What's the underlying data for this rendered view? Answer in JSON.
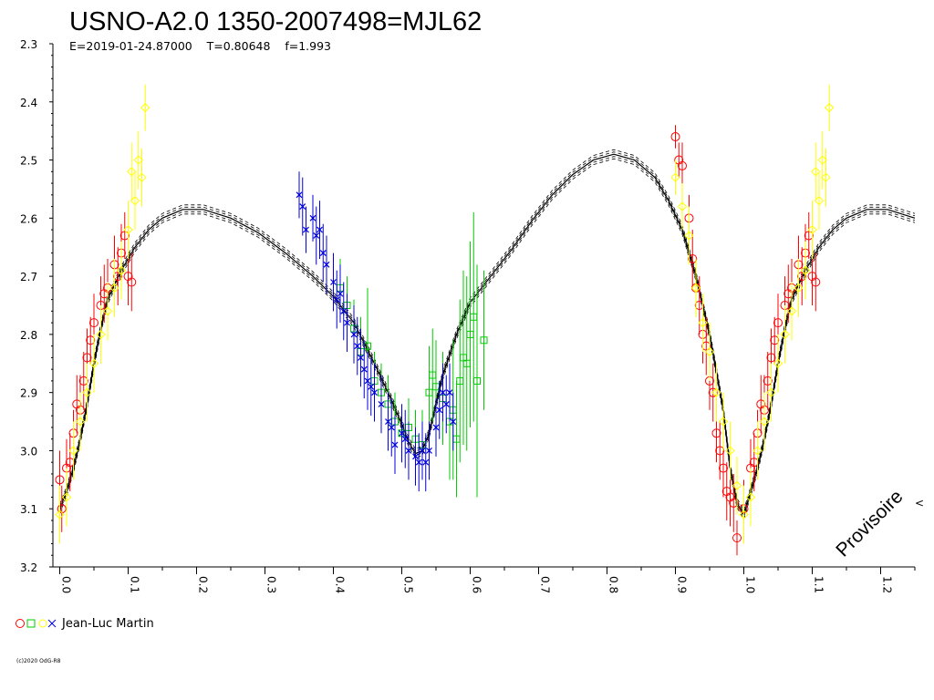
{
  "chart_data": {
    "type": "scatter",
    "title": "USNO-A2.0 1350-2007498=MJL62",
    "subtitle": "E=2019-01-24.87000    T=0.80648    f=1.993",
    "xlim": [
      -0.01,
      1.25
    ],
    "ylim": [
      2.3,
      3.2
    ],
    "y_inverted": true,
    "x_ticks": [
      "0.0",
      "0.1",
      "0.2",
      "0.3",
      "0.4",
      "0.5",
      "0.6",
      "0.7",
      "0.8",
      "0.9",
      "1.0",
      "1.1",
      "1.2"
    ],
    "y_ticks": [
      "2.3",
      "2.4",
      "2.5",
      "2.6",
      "2.7",
      "2.8",
      "2.9",
      "3.0",
      "3.1",
      "3.2"
    ],
    "legend": {
      "position": "bottom-left",
      "label": "Jean-Luc Martin"
    },
    "watermark": "Provisoire",
    "footer": "(c)2020 OdG-R8",
    "model_curve": {
      "color": "#000000",
      "points": [
        [
          0.0,
          3.1
        ],
        [
          0.01,
          3.07
        ],
        [
          0.02,
          3.03
        ],
        [
          0.03,
          2.98
        ],
        [
          0.04,
          2.92
        ],
        [
          0.05,
          2.85
        ],
        [
          0.06,
          2.79
        ],
        [
          0.07,
          2.74
        ],
        [
          0.09,
          2.69
        ],
        [
          0.11,
          2.65
        ],
        [
          0.13,
          2.62
        ],
        [
          0.15,
          2.6
        ],
        [
          0.18,
          2.585
        ],
        [
          0.21,
          2.585
        ],
        [
          0.25,
          2.6
        ],
        [
          0.29,
          2.625
        ],
        [
          0.33,
          2.66
        ],
        [
          0.37,
          2.7
        ],
        [
          0.4,
          2.735
        ],
        [
          0.43,
          2.78
        ],
        [
          0.46,
          2.85
        ],
        [
          0.48,
          2.9
        ],
        [
          0.5,
          2.955
        ],
        [
          0.51,
          2.985
        ],
        [
          0.52,
          3.005
        ],
        [
          0.53,
          3.0
        ],
        [
          0.54,
          2.97
        ],
        [
          0.55,
          2.92
        ],
        [
          0.56,
          2.87
        ],
        [
          0.58,
          2.8
        ],
        [
          0.6,
          2.745
        ],
        [
          0.63,
          2.7
        ],
        [
          0.66,
          2.655
        ],
        [
          0.69,
          2.605
        ],
        [
          0.72,
          2.56
        ],
        [
          0.75,
          2.525
        ],
        [
          0.78,
          2.5
        ],
        [
          0.81,
          2.49
        ],
        [
          0.84,
          2.5
        ],
        [
          0.87,
          2.53
        ],
        [
          0.89,
          2.57
        ],
        [
          0.91,
          2.62
        ],
        [
          0.93,
          2.7
        ],
        [
          0.95,
          2.8
        ],
        [
          0.97,
          2.93
        ],
        [
          0.98,
          3.03
        ],
        [
          0.99,
          3.09
        ],
        [
          1.0,
          3.11
        ],
        [
          1.01,
          3.07
        ],
        [
          1.02,
          3.03
        ],
        [
          1.03,
          2.98
        ],
        [
          1.04,
          2.92
        ],
        [
          1.05,
          2.85
        ],
        [
          1.06,
          2.79
        ],
        [
          1.07,
          2.74
        ],
        [
          1.09,
          2.69
        ],
        [
          1.11,
          2.65
        ],
        [
          1.13,
          2.62
        ],
        [
          1.15,
          2.6
        ],
        [
          1.18,
          2.585
        ],
        [
          1.21,
          2.585
        ],
        [
          1.25,
          2.6
        ]
      ]
    },
    "series": [
      {
        "marker": "circle",
        "color": "#ff0000",
        "points": [
          [
            0.0,
            3.05,
            0.05
          ],
          [
            0.003,
            3.1,
            0.04
          ],
          [
            0.01,
            3.03,
            0.05
          ],
          [
            0.015,
            3.02,
            0.05
          ],
          [
            0.02,
            2.97,
            0.04
          ],
          [
            0.025,
            2.92,
            0.05
          ],
          [
            0.03,
            2.93,
            0.06
          ],
          [
            0.035,
            2.88,
            0.05
          ],
          [
            0.04,
            2.84,
            0.05
          ],
          [
            0.045,
            2.81,
            0.04
          ],
          [
            0.05,
            2.78,
            0.05
          ],
          [
            0.06,
            2.75,
            0.05
          ],
          [
            0.065,
            2.73,
            0.05
          ],
          [
            0.07,
            2.72,
            0.05
          ],
          [
            0.08,
            2.68,
            0.05
          ],
          [
            0.085,
            2.7,
            0.05
          ],
          [
            0.09,
            2.66,
            0.05
          ],
          [
            0.095,
            2.63,
            0.04
          ],
          [
            0.1,
            2.7,
            0.05
          ],
          [
            0.105,
            2.71,
            0.05
          ],
          [
            0.9,
            2.46,
            0.02
          ],
          [
            0.905,
            2.5,
            0.03
          ],
          [
            0.91,
            2.51,
            0.04
          ],
          [
            0.92,
            2.6,
            0.04
          ],
          [
            0.925,
            2.67,
            0.05
          ],
          [
            0.93,
            2.72,
            0.05
          ],
          [
            0.935,
            2.75,
            0.05
          ],
          [
            0.94,
            2.8,
            0.05
          ],
          [
            0.945,
            2.82,
            0.05
          ],
          [
            0.95,
            2.88,
            0.05
          ],
          [
            0.955,
            2.9,
            0.05
          ],
          [
            0.96,
            2.97,
            0.05
          ],
          [
            0.965,
            3.0,
            0.05
          ],
          [
            0.97,
            3.03,
            0.05
          ],
          [
            0.975,
            3.07,
            0.05
          ],
          [
            0.98,
            3.08,
            0.05
          ],
          [
            0.985,
            3.09,
            0.05
          ],
          [
            0.99,
            3.15,
            0.03
          ],
          [
            1.0,
            3.1,
            0.05
          ],
          [
            1.01,
            3.03,
            0.05
          ],
          [
            1.015,
            3.02,
            0.05
          ],
          [
            1.02,
            2.97,
            0.04
          ],
          [
            1.025,
            2.92,
            0.05
          ],
          [
            1.03,
            2.93,
            0.06
          ],
          [
            1.035,
            2.88,
            0.05
          ],
          [
            1.04,
            2.84,
            0.05
          ],
          [
            1.045,
            2.81,
            0.04
          ],
          [
            1.05,
            2.78,
            0.05
          ],
          [
            1.06,
            2.75,
            0.05
          ],
          [
            1.065,
            2.73,
            0.05
          ],
          [
            1.07,
            2.72,
            0.05
          ],
          [
            1.08,
            2.68,
            0.05
          ],
          [
            1.085,
            2.7,
            0.05
          ],
          [
            1.09,
            2.66,
            0.05
          ],
          [
            1.095,
            2.63,
            0.04
          ],
          [
            1.1,
            2.7,
            0.05
          ],
          [
            1.105,
            2.71,
            0.05
          ]
        ]
      },
      {
        "marker": "square",
        "color": "#00cc00",
        "points": [
          [
            0.41,
            2.72,
            0.05
          ],
          [
            0.42,
            2.75,
            0.05
          ],
          [
            0.43,
            2.79,
            0.05
          ],
          [
            0.44,
            2.83,
            0.06
          ],
          [
            0.45,
            2.82,
            0.1
          ],
          [
            0.46,
            2.88,
            0.05
          ],
          [
            0.47,
            2.9,
            0.05
          ],
          [
            0.48,
            2.92,
            0.05
          ],
          [
            0.49,
            2.95,
            0.05
          ],
          [
            0.5,
            2.97,
            0.05
          ],
          [
            0.51,
            2.96,
            0.05
          ],
          [
            0.52,
            2.98,
            0.05
          ],
          [
            0.53,
            2.99,
            0.06
          ],
          [
            0.54,
            2.9,
            0.08
          ],
          [
            0.545,
            2.87,
            0.08
          ],
          [
            0.55,
            2.89,
            0.08
          ],
          [
            0.56,
            2.91,
            0.08
          ],
          [
            0.57,
            2.95,
            0.1
          ],
          [
            0.575,
            2.93,
            0.12
          ],
          [
            0.58,
            2.98,
            0.1
          ],
          [
            0.585,
            2.88,
            0.14
          ],
          [
            0.59,
            2.84,
            0.15
          ],
          [
            0.595,
            2.85,
            0.15
          ],
          [
            0.6,
            2.8,
            0.16
          ],
          [
            0.605,
            2.77,
            0.18
          ],
          [
            0.61,
            2.88,
            0.2
          ],
          [
            0.62,
            2.81,
            0.12
          ]
        ]
      },
      {
        "marker": "diamond",
        "color": "#ffff00",
        "points": [
          [
            0.0,
            3.11,
            0.05
          ],
          [
            0.01,
            3.08,
            0.05
          ],
          [
            0.02,
            3.0,
            0.05
          ],
          [
            0.03,
            2.95,
            0.05
          ],
          [
            0.04,
            2.9,
            0.05
          ],
          [
            0.05,
            2.85,
            0.05
          ],
          [
            0.06,
            2.8,
            0.05
          ],
          [
            0.07,
            2.76,
            0.05
          ],
          [
            0.08,
            2.72,
            0.05
          ],
          [
            0.09,
            2.69,
            0.05
          ],
          [
            0.1,
            2.62,
            0.05
          ],
          [
            0.105,
            2.52,
            0.05
          ],
          [
            0.11,
            2.57,
            0.05
          ],
          [
            0.115,
            2.5,
            0.05
          ],
          [
            0.12,
            2.53,
            0.05
          ],
          [
            0.125,
            2.41,
            0.04
          ],
          [
            0.9,
            2.53,
            0.03
          ],
          [
            0.91,
            2.58,
            0.04
          ],
          [
            0.92,
            2.63,
            0.05
          ],
          [
            0.93,
            2.72,
            0.05
          ],
          [
            0.94,
            2.78,
            0.05
          ],
          [
            0.95,
            2.83,
            0.05
          ],
          [
            0.96,
            2.9,
            0.05
          ],
          [
            0.97,
            2.95,
            0.05
          ],
          [
            0.98,
            3.0,
            0.05
          ],
          [
            0.99,
            3.06,
            0.05
          ],
          [
            1.0,
            3.11,
            0.05
          ],
          [
            1.01,
            3.08,
            0.05
          ],
          [
            1.02,
            3.0,
            0.05
          ],
          [
            1.03,
            2.95,
            0.05
          ],
          [
            1.04,
            2.9,
            0.05
          ],
          [
            1.05,
            2.85,
            0.05
          ],
          [
            1.06,
            2.8,
            0.05
          ],
          [
            1.07,
            2.76,
            0.05
          ],
          [
            1.08,
            2.72,
            0.05
          ],
          [
            1.09,
            2.69,
            0.05
          ],
          [
            1.1,
            2.62,
            0.05
          ],
          [
            1.105,
            2.52,
            0.05
          ],
          [
            1.11,
            2.57,
            0.05
          ],
          [
            1.115,
            2.5,
            0.05
          ],
          [
            1.12,
            2.53,
            0.05
          ],
          [
            1.125,
            2.41,
            0.04
          ]
        ]
      },
      {
        "marker": "cross",
        "color": "#0000dd",
        "points": [
          [
            0.35,
            2.56,
            0.04
          ],
          [
            0.355,
            2.58,
            0.05
          ],
          [
            0.36,
            2.62,
            0.04
          ],
          [
            0.37,
            2.6,
            0.04
          ],
          [
            0.375,
            2.63,
            0.05
          ],
          [
            0.38,
            2.62,
            0.05
          ],
          [
            0.385,
            2.66,
            0.05
          ],
          [
            0.39,
            2.68,
            0.05
          ],
          [
            0.4,
            2.71,
            0.05
          ],
          [
            0.405,
            2.74,
            0.05
          ],
          [
            0.41,
            2.73,
            0.05
          ],
          [
            0.415,
            2.76,
            0.05
          ],
          [
            0.42,
            2.78,
            0.05
          ],
          [
            0.43,
            2.8,
            0.05
          ],
          [
            0.435,
            2.82,
            0.05
          ],
          [
            0.44,
            2.84,
            0.05
          ],
          [
            0.445,
            2.86,
            0.05
          ],
          [
            0.45,
            2.88,
            0.05
          ],
          [
            0.455,
            2.89,
            0.05
          ],
          [
            0.46,
            2.9,
            0.05
          ],
          [
            0.47,
            2.92,
            0.05
          ],
          [
            0.48,
            2.95,
            0.05
          ],
          [
            0.485,
            2.96,
            0.05
          ],
          [
            0.49,
            2.99,
            0.05
          ],
          [
            0.5,
            2.97,
            0.05
          ],
          [
            0.505,
            2.98,
            0.05
          ],
          [
            0.51,
            3.0,
            0.05
          ],
          [
            0.52,
            3.01,
            0.05
          ],
          [
            0.525,
            3.02,
            0.05
          ],
          [
            0.53,
            3.0,
            0.05
          ],
          [
            0.535,
            3.02,
            0.05
          ],
          [
            0.54,
            3.0,
            0.05
          ],
          [
            0.55,
            2.96,
            0.05
          ],
          [
            0.555,
            2.93,
            0.05
          ],
          [
            0.56,
            2.9,
            0.05
          ],
          [
            0.565,
            2.92,
            0.05
          ],
          [
            0.57,
            2.9,
            0.05
          ],
          [
            0.575,
            2.95,
            0.05
          ]
        ]
      }
    ]
  }
}
